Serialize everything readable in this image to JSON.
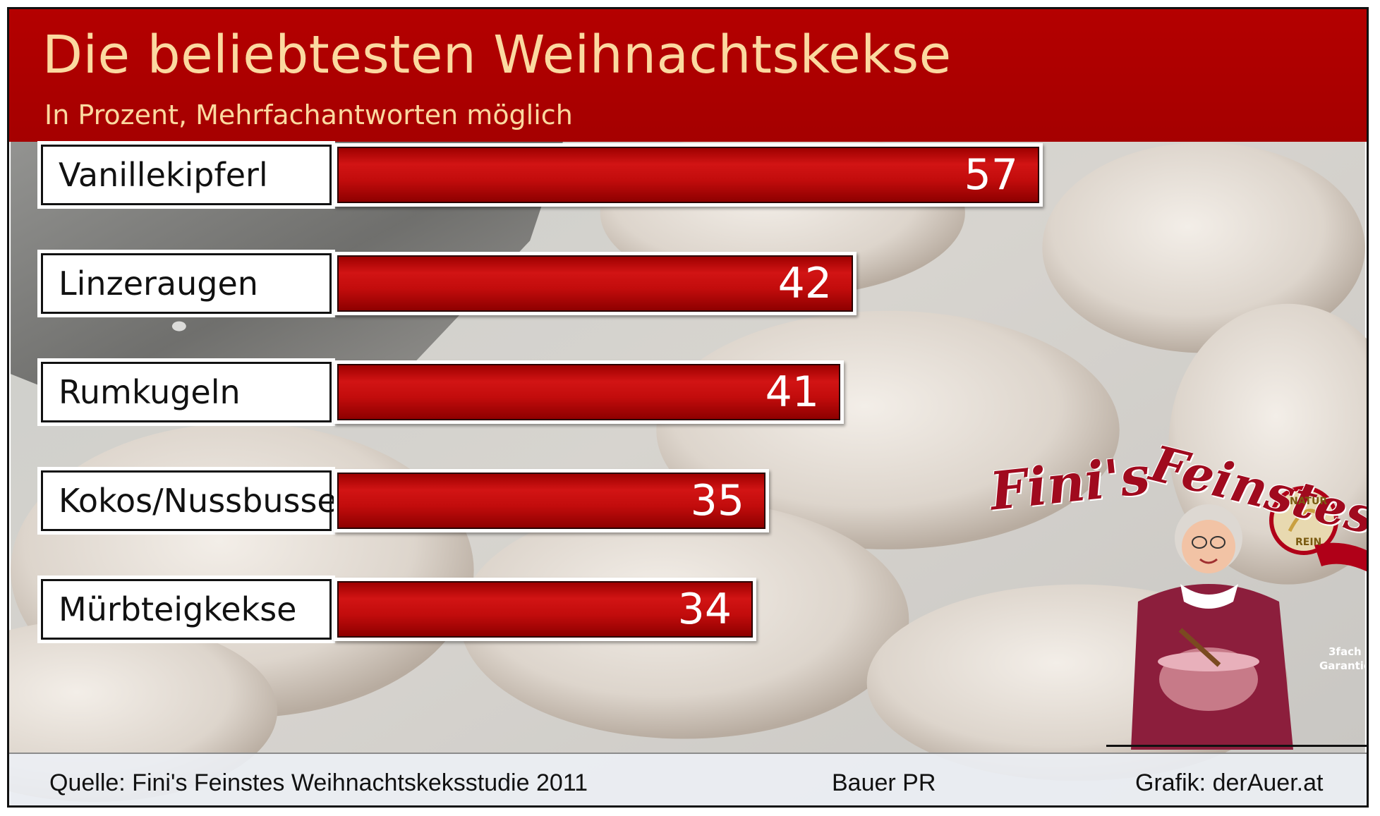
{
  "header": {
    "title": "Die beliebtesten Weihnachtskekse",
    "subtitle": "In Prozent, Mehrfachantworten möglich"
  },
  "chart_data": {
    "type": "bar",
    "orientation": "horizontal",
    "title": "Die beliebtesten Weihnachtskekse",
    "subtitle": "In Prozent, Mehrfachantworten möglich",
    "categories": [
      "Vanillekipferl",
      "Linzeraugen",
      "Rumkugeln",
      "Kokos/Nussbusserl",
      "Mürbteigkekse"
    ],
    "values": [
      57,
      42,
      41,
      35,
      34
    ],
    "data_labels": [
      "57",
      "42",
      "41",
      "35",
      "34"
    ],
    "xlim": [
      0,
      57
    ],
    "grid": false,
    "bar_color": "#c20c0c"
  },
  "footer": {
    "source": "Quelle: Fini's Feinstes Weihnachtskeksstudie 2011",
    "author": "Bauer PR",
    "credit": "Grafik: derAuer.at"
  },
  "logo": {
    "brand_line1": "Fini's",
    "brand_line2": "Feinstes",
    "seal_top": "NATUR",
    "seal_bottom": "REIN",
    "guarantee_line1": "3fach",
    "guarantee_line2": "Garantie"
  },
  "colors": {
    "header_bg": "#b00000",
    "title_text": "#fbd9a0",
    "bar": "#c20c0c",
    "brand": "#a00a1e"
  }
}
